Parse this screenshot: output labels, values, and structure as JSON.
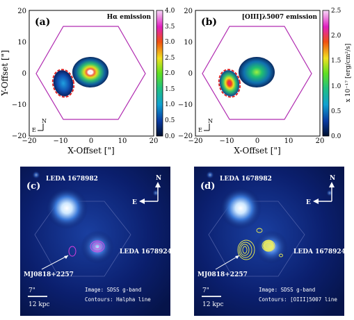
{
  "top_panels": [
    {
      "tag": "(a)",
      "title": "Hα emission",
      "cbar_ticks": [
        "4.0",
        "3.5",
        "3.0",
        "2.5",
        "2.0",
        "1.5",
        "1.0",
        "0.5",
        "0.0"
      ]
    },
    {
      "tag": "(b)",
      "title": "[OIII]λ5007 emission",
      "cbar_ticks": [
        "2.5",
        "2.0",
        "1.5",
        "1.0",
        "0.5",
        "0.0"
      ]
    }
  ],
  "axes": {
    "x_label": "X-Offset [\"]",
    "y_label": "Y-Offset [\"]",
    "x_ticks": [
      "−20",
      "−10",
      "0",
      "10",
      "20"
    ],
    "y_ticks": [
      "20",
      "10",
      "0",
      "−10",
      "−20"
    ],
    "cbar_unit": "x 10⁻¹⁷ [erg/cm²/s]",
    "compass_n": "N",
    "compass_e": "E"
  },
  "bottom_panels": [
    {
      "tag": "(c)",
      "galaxy_top": "LEDA 1678982",
      "galaxy_right": "LEDA 1678924",
      "target": "MJ0818+2257",
      "compass_n": "N",
      "compass_e": "E",
      "scale_arcsec": "7\"",
      "scale_kpc": "12 kpc",
      "image_note": "Image: SDSS g-band",
      "contour_note": "Contours: Halpha line"
    },
    {
      "tag": "(d)",
      "galaxy_top": "LEDA 1678982",
      "galaxy_right": "LEDA 1678924",
      "target": "MJ0818+2257",
      "compass_n": "N",
      "compass_e": "E",
      "scale_arcsec": "7\"",
      "scale_kpc": "12 kpc",
      "image_note": "Image: SDSS g-band",
      "contour_note": "Contours: [OIII]5007 line"
    }
  ],
  "colors": {
    "hexagon": "#b02ab0",
    "ellipse": "#e02020",
    "contour_c": "#e040e0",
    "contour_d": "#f0f050"
  }
}
